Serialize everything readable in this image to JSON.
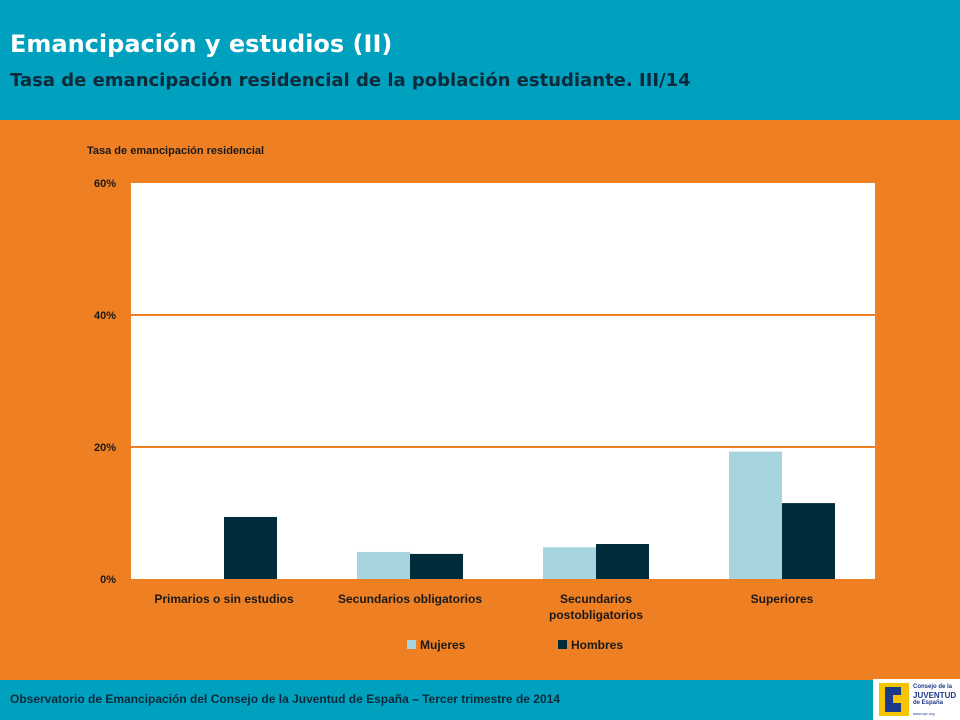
{
  "header": {
    "title": "Emancipación y estudios (II)",
    "subtitle": "Tasa de emancipación residencial de la población estudiante. III/14"
  },
  "footer": {
    "text": "Observatorio de Emancipación del Consejo de la Juventud de España –  Tercer trimestre de 2014",
    "logo": {
      "lines": [
        "Consejo de la",
        "JUVENTUD",
        "de España"
      ],
      "url": "www.cje.org"
    }
  },
  "colors": {
    "header_bg": "#00a0bf",
    "page_bg": "#ee7f22",
    "mujeres": "#a6d4df",
    "hombres": "#002b3a",
    "gridline": "#ee7f22"
  },
  "chart_data": {
    "type": "bar",
    "title": "",
    "ylabel": "Tasa de emancipación residencial",
    "xlabel": "",
    "categories": [
      "Primarios o sin estudios",
      "Secundarios obligatorios",
      "Secundarios\npostobligatorios",
      "Superiores"
    ],
    "series": [
      {
        "name": "Mujeres",
        "values": [
          0,
          4.1,
          4.8,
          19.3
        ]
      },
      {
        "name": "Hombres",
        "values": [
          9.4,
          3.8,
          5.3,
          11.5
        ]
      }
    ],
    "ylim": [
      0,
      60
    ],
    "yticks": [
      0,
      20,
      40,
      60
    ],
    "ytick_labels": [
      "0%",
      "20%",
      "40%",
      "60%"
    ],
    "grid": true,
    "legend": "bottom"
  }
}
